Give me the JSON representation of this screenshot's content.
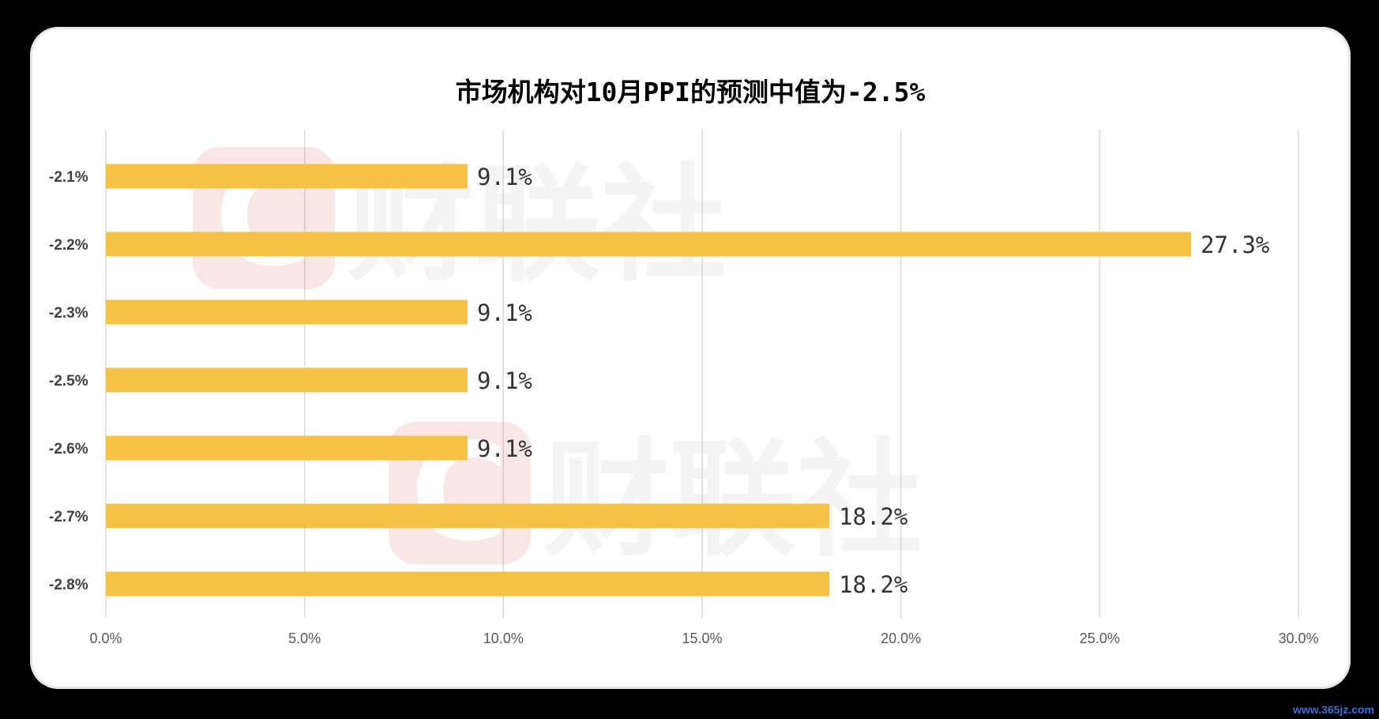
{
  "chart_data": {
    "type": "bar",
    "orientation": "horizontal",
    "title": "市场机构对10月PPI的预测中值为-2.5%",
    "categories": [
      "-2.1%",
      "-2.2%",
      "-2.3%",
      "-2.5%",
      "-2.6%",
      "-2.7%",
      "-2.8%"
    ],
    "values": [
      9.1,
      27.3,
      9.1,
      9.1,
      9.1,
      18.2,
      18.2
    ],
    "data_labels": [
      "9.1%",
      "27.3%",
      "9.1%",
      "9.1%",
      "9.1%",
      "18.2%",
      "18.2%"
    ],
    "x_ticks": [
      "0.0%",
      "5.0%",
      "10.0%",
      "15.0%",
      "20.0%",
      "25.0%",
      "30.0%"
    ],
    "xlim": [
      0,
      30
    ],
    "grid": "vertical",
    "legend": "none",
    "bar_color": "#f6c244"
  },
  "watermark": {
    "text": "财联社",
    "logo_letter": "C"
  },
  "site_mark": "www.365jz.com",
  "colors": {
    "background": "#000000",
    "card": "#ffffff",
    "grid": "#d9d9d9",
    "watermark": "#e8a0a0"
  }
}
